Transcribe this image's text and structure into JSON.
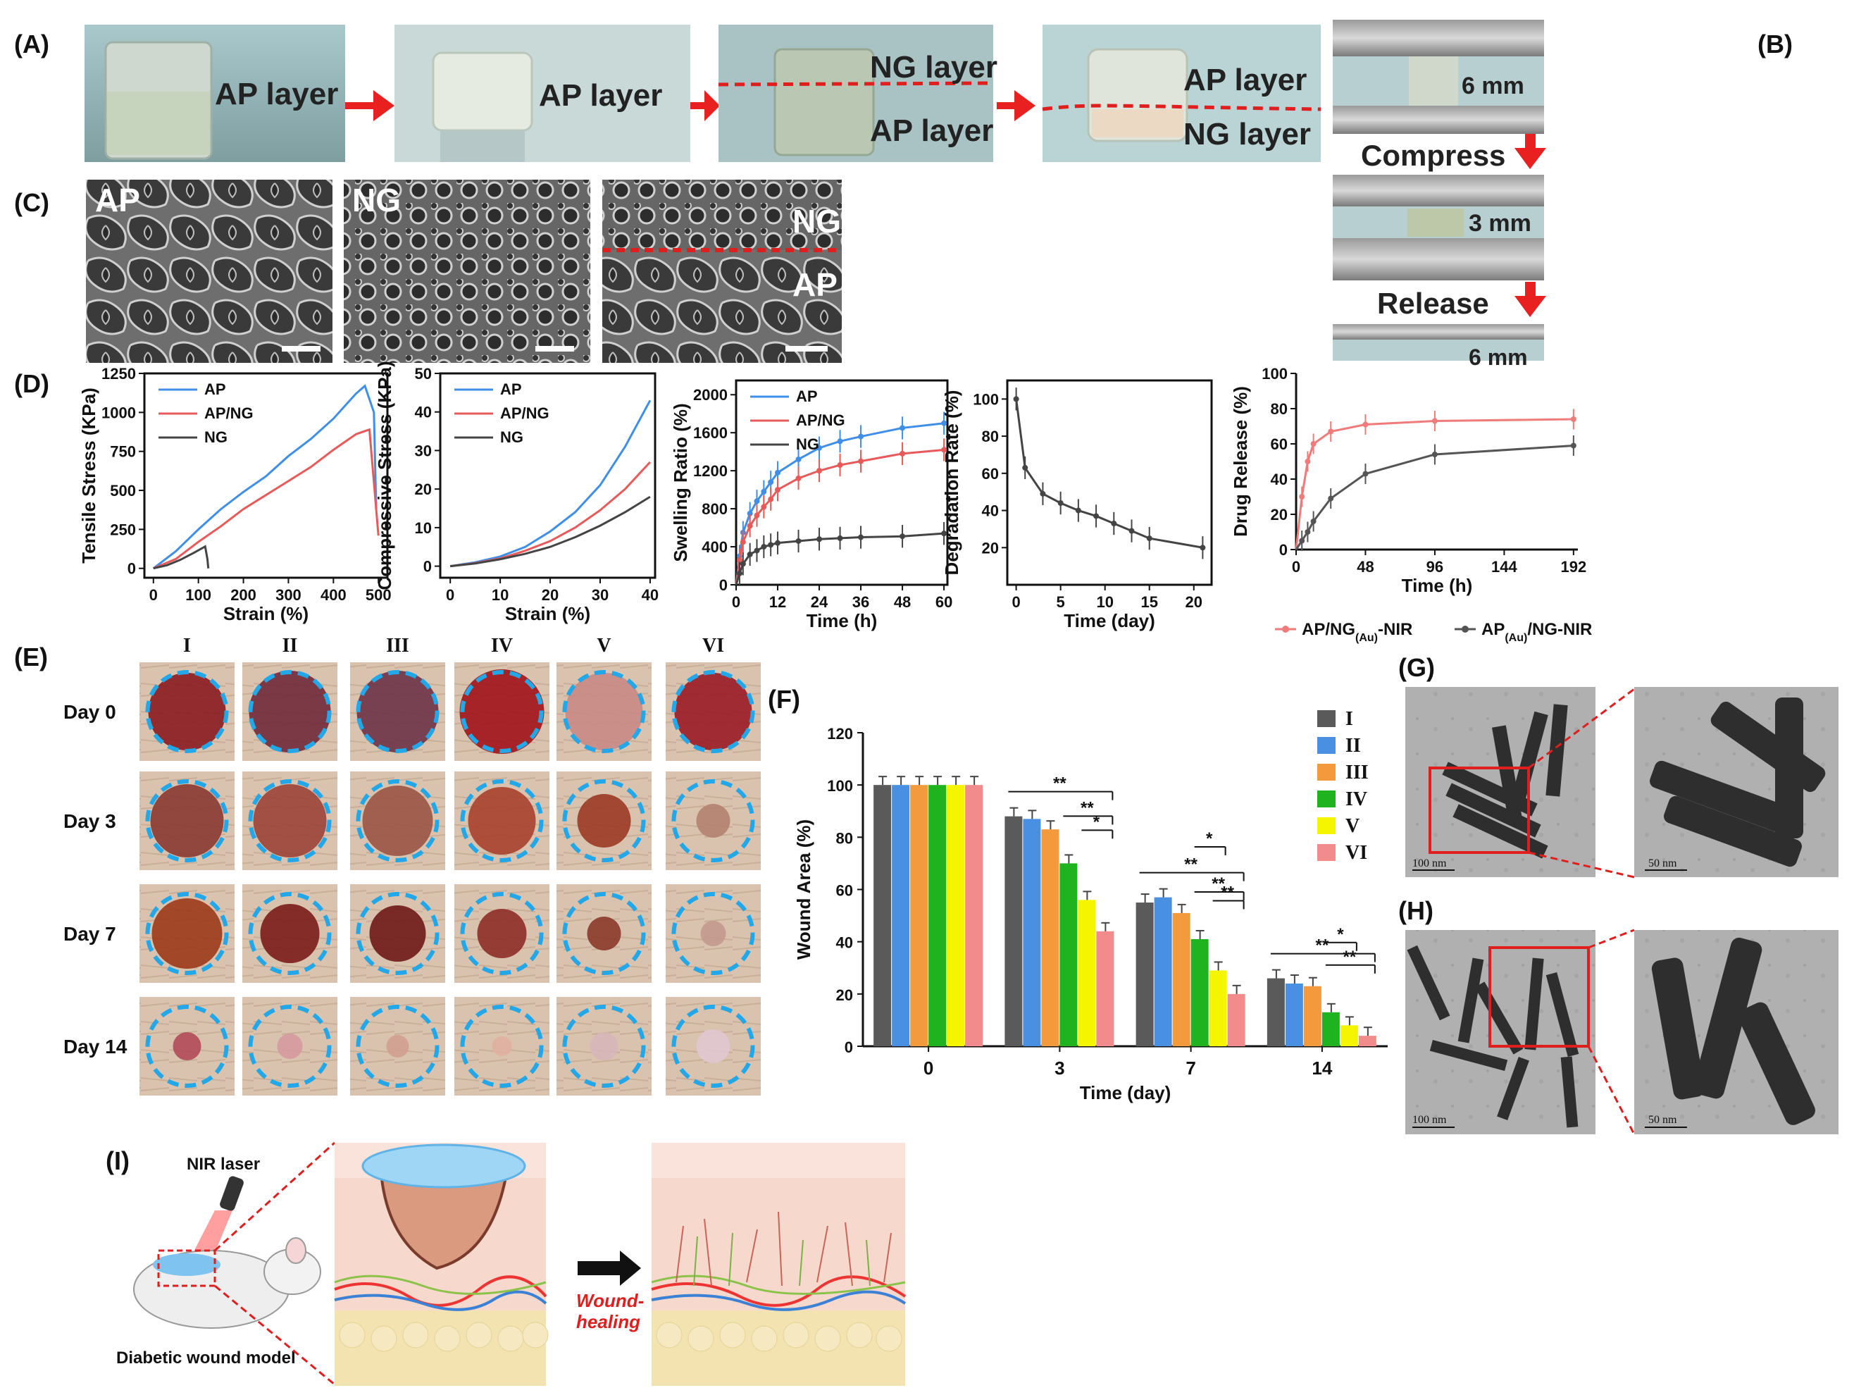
{
  "panels": {
    "A": "(A)",
    "B": "(B)",
    "C": "(C)",
    "D": "(D)",
    "E": "(E)",
    "F": "(F)",
    "G": "(G)",
    "H": "(H)",
    "I": "(I)"
  },
  "panel_a": {
    "photo1_label": "AP layer",
    "photo2_label": "AP layer",
    "photo3_top": "NG layer",
    "photo3_bottom": "AP layer",
    "photo4_top": "AP layer",
    "photo4_bottom": "NG layer"
  },
  "panel_b": {
    "gap1": "6 mm",
    "compress": "Compress",
    "gap2": "3 mm",
    "release": "Release",
    "gap3": "6 mm"
  },
  "panel_c": {
    "img1": "AP",
    "img2": "NG",
    "img3_top": "NG",
    "img3_bottom": "AP"
  },
  "panel_e": {
    "columns": [
      "I",
      "II",
      "III",
      "IV",
      "V",
      "VI"
    ],
    "rows": [
      "Day 0",
      "Day 3",
      "Day 7",
      "Day 14"
    ]
  },
  "panel_g": {
    "scale_left": "100 nm",
    "scale_right": "50 nm"
  },
  "panel_h": {
    "scale_left": "100 nm",
    "scale_right": "50 nm"
  },
  "panel_i": {
    "nir": "NIR laser",
    "model": "Diabetic wound model",
    "healing_line1": "Wound-",
    "healing_line2": "healing"
  },
  "colors": {
    "ap": "#3f8fe8",
    "apng": "#e85a5a",
    "ng": "#444444",
    "release_red": "#ef7b7b",
    "release_gray": "#555555"
  },
  "chart_data": [
    {
      "id": "tensile",
      "type": "line",
      "xlabel": "Strain (%)",
      "ylabel": "Tensile Stress (KPa)",
      "xlim": [
        -20,
        520
      ],
      "ylim": [
        -60,
        1250
      ],
      "xticks": [
        0,
        100,
        200,
        300,
        400,
        500
      ],
      "yticks": [
        0,
        250,
        500,
        750,
        1000,
        1250
      ],
      "series": [
        {
          "name": "AP",
          "color": "#3f8fe8",
          "x": [
            0,
            50,
            100,
            150,
            200,
            250,
            300,
            350,
            400,
            450,
            470,
            490,
            495
          ],
          "y": [
            0,
            110,
            250,
            380,
            490,
            590,
            720,
            830,
            960,
            1120,
            1170,
            1000,
            380
          ]
        },
        {
          "name": "AP/NG",
          "color": "#e85a5a",
          "x": [
            0,
            50,
            100,
            150,
            200,
            250,
            300,
            350,
            400,
            450,
            480,
            500
          ],
          "y": [
            0,
            60,
            170,
            270,
            380,
            470,
            560,
            650,
            760,
            860,
            890,
            210
          ]
        },
        {
          "name": "NG",
          "color": "#444444",
          "x": [
            0,
            30,
            60,
            90,
            115,
            120,
            122
          ],
          "y": [
            0,
            20,
            55,
            100,
            140,
            60,
            0
          ]
        }
      ]
    },
    {
      "id": "compressive",
      "type": "line",
      "xlabel": "Strain (%)",
      "ylabel": "Compressive Stress (KPa)",
      "xlim": [
        -2,
        41
      ],
      "ylim": [
        -3,
        50
      ],
      "xticks": [
        0,
        10,
        20,
        30,
        40
      ],
      "yticks": [
        0,
        10,
        20,
        30,
        40,
        50
      ],
      "series": [
        {
          "name": "AP",
          "color": "#3f8fe8",
          "x": [
            0,
            5,
            10,
            15,
            20,
            25,
            30,
            35,
            40
          ],
          "y": [
            0,
            1,
            2.5,
            5,
            9,
            14,
            21,
            31,
            43
          ]
        },
        {
          "name": "AP/NG",
          "color": "#e85a5a",
          "x": [
            0,
            5,
            10,
            15,
            20,
            25,
            30,
            35,
            40
          ],
          "y": [
            0,
            0.8,
            2,
            4,
            6.5,
            10,
            14.5,
            20,
            27
          ]
        },
        {
          "name": "NG",
          "color": "#444444",
          "x": [
            0,
            5,
            10,
            15,
            20,
            25,
            30,
            35,
            40
          ],
          "y": [
            0,
            0.7,
            1.8,
            3.2,
            5,
            7.5,
            10.5,
            14,
            18
          ]
        }
      ]
    },
    {
      "id": "swelling",
      "type": "line",
      "xlabel": "Time (h)",
      "ylabel": "Swelling Ratio (%)",
      "xlim": [
        0,
        61
      ],
      "ylim": [
        0,
        2150
      ],
      "xticks": [
        0,
        12,
        24,
        36,
        48,
        60
      ],
      "yticks": [
        0,
        400,
        800,
        1200,
        1600,
        2000
      ],
      "series": [
        {
          "name": "AP",
          "color": "#3f8fe8",
          "x": [
            0,
            1,
            2,
            4,
            6,
            8,
            10,
            12,
            18,
            24,
            30,
            36,
            48,
            60
          ],
          "y": [
            0,
            300,
            550,
            750,
            880,
            980,
            1080,
            1180,
            1320,
            1440,
            1510,
            1560,
            1650,
            1700
          ]
        },
        {
          "name": "AP/NG",
          "color": "#e85a5a",
          "x": [
            0,
            1,
            2,
            4,
            6,
            8,
            10,
            12,
            18,
            24,
            30,
            36,
            48,
            60
          ],
          "y": [
            0,
            260,
            450,
            620,
            730,
            820,
            900,
            1000,
            1120,
            1200,
            1260,
            1300,
            1380,
            1420
          ]
        },
        {
          "name": "NG",
          "color": "#444444",
          "x": [
            0,
            1,
            2,
            4,
            6,
            8,
            10,
            12,
            18,
            24,
            30,
            36,
            48,
            60
          ],
          "y": [
            0,
            120,
            220,
            320,
            360,
            400,
            420,
            440,
            460,
            480,
            490,
            500,
            510,
            540
          ]
        }
      ]
    },
    {
      "id": "degradation",
      "type": "line",
      "xlabel": "Time (day)",
      "ylabel": "Degradation Rate (%)",
      "xlim": [
        -1,
        22
      ],
      "ylim": [
        0,
        110
      ],
      "xticks": [
        0,
        5,
        10,
        15,
        20
      ],
      "yticks": [
        20,
        40,
        60,
        80,
        100
      ],
      "series": [
        {
          "name": "degradation",
          "color": "#444444",
          "x": [
            0,
            1,
            3,
            5,
            7,
            9,
            11,
            13,
            15,
            21
          ],
          "y": [
            100,
            63,
            49,
            44,
            40,
            37,
            33,
            29,
            25,
            20
          ]
        }
      ]
    },
    {
      "id": "release",
      "type": "line",
      "xlabel": "Time (h)",
      "ylabel": "Drug Release (%)",
      "xlim": [
        0,
        195
      ],
      "ylim": [
        0,
        100
      ],
      "xticks": [
        0,
        48,
        96,
        144,
        192
      ],
      "yticks": [
        0,
        20,
        40,
        60,
        80,
        100
      ],
      "series": [
        {
          "name": "AP/NG(Au)-NIR",
          "color": "#ef7b7b",
          "x": [
            0,
            4,
            8,
            12,
            24,
            48,
            96,
            192
          ],
          "y": [
            0,
            30,
            50,
            60,
            67,
            71,
            73,
            74
          ]
        },
        {
          "name": "AP(Au)/NG-NIR",
          "color": "#555555",
          "x": [
            0,
            4,
            8,
            12,
            24,
            48,
            96,
            192
          ],
          "y": [
            0,
            5,
            10,
            16,
            29,
            43,
            54,
            59
          ]
        }
      ]
    },
    {
      "id": "wound",
      "type": "bar",
      "xlabel": "Time (day)",
      "ylabel": "Wound Area (%)",
      "ylim": [
        0,
        120
      ],
      "yticks": [
        0,
        20,
        40,
        60,
        80,
        100,
        120
      ],
      "categories": [
        "0",
        "3",
        "7",
        "14"
      ],
      "series": [
        {
          "name": "I",
          "color": "#5a5a5a",
          "values": [
            100,
            88,
            55,
            26
          ]
        },
        {
          "name": "II",
          "color": "#4a90e2",
          "values": [
            100,
            87,
            57,
            24
          ]
        },
        {
          "name": "III",
          "color": "#f39a3c",
          "values": [
            100,
            83,
            51,
            23
          ]
        },
        {
          "name": "IV",
          "color": "#1fb31f",
          "values": [
            100,
            70,
            41,
            13
          ]
        },
        {
          "name": "V",
          "color": "#f5f500",
          "values": [
            100,
            56,
            29,
            8
          ]
        },
        {
          "name": "VI",
          "color": "#f28c8c",
          "values": [
            100,
            44,
            20,
            4
          ]
        }
      ],
      "significance": [
        "**",
        "**",
        "*",
        "**",
        "**",
        "**",
        "*",
        "**",
        "**",
        "*"
      ]
    }
  ]
}
